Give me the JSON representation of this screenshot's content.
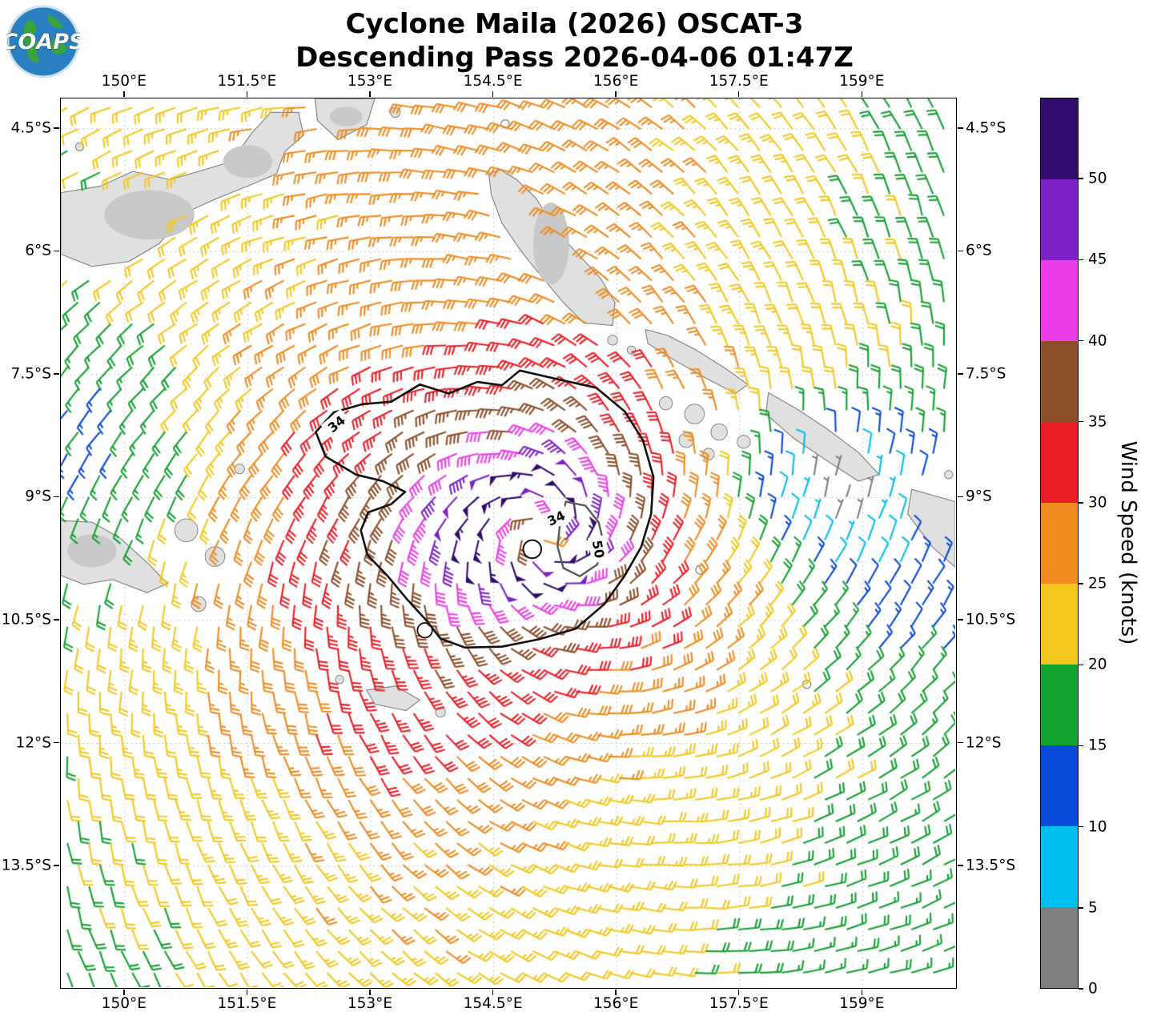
{
  "header": {
    "title_line1": "Cyclone Maila (2026) OSCAT-3",
    "title_line2": "Descending Pass 2026-04-06 01:47Z",
    "logo_text": "COAPS"
  },
  "map": {
    "lon_ticks": [
      {
        "value": 150.0,
        "label": "150°E"
      },
      {
        "value": 151.5,
        "label": "151.5°E"
      },
      {
        "value": 153.0,
        "label": "153°E"
      },
      {
        "value": 154.5,
        "label": "154.5°E"
      },
      {
        "value": 156.0,
        "label": "156°E"
      },
      {
        "value": 157.5,
        "label": "157.5°E"
      },
      {
        "value": 159.0,
        "label": "159°E"
      }
    ],
    "lat_ticks": [
      {
        "value": -4.5,
        "label": "4.5°S"
      },
      {
        "value": -6.0,
        "label": "6°S"
      },
      {
        "value": -7.5,
        "label": "7.5°S"
      },
      {
        "value": -9.0,
        "label": "9°S"
      },
      {
        "value": -10.5,
        "label": "10.5°S"
      },
      {
        "value": -12.0,
        "label": "12°S"
      },
      {
        "value": -13.5,
        "label": "13.5°S"
      }
    ]
  },
  "colorbar": {
    "label": "Wind Speed (knots)",
    "tick_values": [
      0,
      5,
      10,
      15,
      20,
      25,
      30,
      35,
      40,
      45,
      50
    ],
    "bounds": [
      0,
      5,
      10,
      15,
      20,
      25,
      30,
      35,
      40,
      45,
      50,
      55
    ],
    "colors": [
      "#7f7f7f",
      "#00bfef",
      "#0949d8",
      "#12a22f",
      "#f5c71e",
      "#f08b20",
      "#ea1d25",
      "#8d4e2a",
      "#ed3dea",
      "#7e22c8",
      "#330c6e"
    ]
  },
  "chart_data": {
    "type": "wind_barb_map",
    "units": "knots",
    "title": "Cyclone Maila (2026) OSCAT-3 Descending Pass 2026-04-06 01:47Z",
    "projection": {
      "lon_min": 149.22,
      "lon_max": 160.13,
      "lat_min": -14.975,
      "lat_max": -4.13
    },
    "grid": {
      "lon_start": 149.3,
      "lat_start": -4.24,
      "dlon": 0.264,
      "dlat": 0.264,
      "stagger": 0.132
    },
    "vortex": {
      "center_lon": 155.1,
      "center_lat": -9.45,
      "vmax_kt": 55,
      "rmax_deg": 0.5,
      "inner_exp": 0.35,
      "outer_exp": 0.45,
      "inflow_deg": 22,
      "west_stretch": 0.55,
      "north_stretch": 0.75,
      "zones": [
        {
          "lon": 154.5,
          "lat": -4.3,
          "amp": 7,
          "slon": 3.5,
          "slat": 1.2
        },
        {
          "lon": 153.5,
          "lat": -14.5,
          "amp": 5,
          "slon": 3.0,
          "slat": 1.5
        },
        {
          "lon": 149.8,
          "lat": -8.5,
          "amp": -10,
          "slon": 1.4,
          "slat": 1.8
        },
        {
          "lon": 158.6,
          "lat": -8.9,
          "amp": -20,
          "slon": 1.1,
          "slat": 0.9
        },
        {
          "lon": 159.3,
          "lat": -10.3,
          "amp": -8,
          "slon": 1.2,
          "slat": 1.0
        },
        {
          "lon": 153.3,
          "lat": -11.8,
          "amp": 6,
          "slon": 1.5,
          "slat": 1.2
        }
      ]
    },
    "contours": [
      {
        "level": 34,
        "color": "#111111",
        "width": 2.6,
        "points": [
          [
            154.82,
            -7.45
          ],
          [
            155.3,
            -7.56
          ],
          [
            155.75,
            -7.66
          ],
          [
            156.1,
            -7.95
          ],
          [
            156.32,
            -8.3
          ],
          [
            156.45,
            -8.75
          ],
          [
            156.42,
            -9.2
          ],
          [
            156.3,
            -9.6
          ],
          [
            156.1,
            -9.95
          ],
          [
            155.85,
            -10.3
          ],
          [
            155.5,
            -10.6
          ],
          [
            155.05,
            -10.73
          ],
          [
            154.6,
            -10.82
          ],
          [
            154.15,
            -10.83
          ],
          [
            153.85,
            -10.72
          ],
          [
            153.68,
            -10.5
          ],
          [
            153.45,
            -10.25
          ],
          [
            153.2,
            -9.95
          ],
          [
            152.96,
            -9.7
          ],
          [
            152.88,
            -9.4
          ],
          [
            152.97,
            -9.18
          ],
          [
            153.25,
            -9.08
          ],
          [
            153.42,
            -8.93
          ],
          [
            153.15,
            -8.8
          ],
          [
            152.82,
            -8.72
          ],
          [
            152.45,
            -8.5
          ],
          [
            152.33,
            -8.2
          ],
          [
            152.55,
            -7.96
          ],
          [
            152.9,
            -7.86
          ],
          [
            153.25,
            -7.83
          ],
          [
            153.6,
            -7.62
          ],
          [
            153.95,
            -7.73
          ],
          [
            154.3,
            -7.59
          ],
          [
            154.6,
            -7.63
          ]
        ]
      },
      {
        "level": 50,
        "color": "#5a5a5a",
        "width": 2.4,
        "points": [
          [
            155.38,
            -9.05
          ],
          [
            155.62,
            -9.1
          ],
          [
            155.78,
            -9.3
          ],
          [
            155.84,
            -9.55
          ],
          [
            155.76,
            -9.82
          ],
          [
            155.55,
            -9.96
          ],
          [
            155.35,
            -9.86
          ],
          [
            155.28,
            -9.6
          ],
          [
            155.31,
            -9.3
          ]
        ]
      },
      {
        "level": 34,
        "color": "#111111",
        "width": 2.0,
        "circle": [
          154.97,
          -9.63,
          0.11
        ]
      },
      {
        "level": 34,
        "color": "#111111",
        "width": 1.8,
        "circle": [
          153.66,
          -10.62,
          0.09
        ]
      }
    ],
    "contour_labels": [
      {
        "text": "34",
        "lon": 152.58,
        "lat": -8.1,
        "rot": -40
      },
      {
        "text": "34",
        "lon": 155.26,
        "lat": -9.25,
        "rot": -25
      },
      {
        "text": "50",
        "lon": 155.78,
        "lat": -9.63,
        "rot": 80
      }
    ],
    "land": {
      "polygons": [
        {
          "name": "new-britain",
          "points": [
            [
              149.22,
              -5.28
            ],
            [
              149.7,
              -5.2
            ],
            [
              150.1,
              -5.02
            ],
            [
              150.55,
              -5.12
            ],
            [
              150.9,
              -5.02
            ],
            [
              151.3,
              -4.9
            ],
            [
              151.55,
              -4.55
            ],
            [
              151.78,
              -4.3
            ],
            [
              152.12,
              -4.3
            ],
            [
              152.18,
              -4.58
            ],
            [
              151.95,
              -4.78
            ],
            [
              151.85,
              -5.05
            ],
            [
              151.5,
              -5.2
            ],
            [
              151.12,
              -5.35
            ],
            [
              150.75,
              -5.52
            ],
            [
              150.42,
              -5.9
            ],
            [
              150.05,
              -6.12
            ],
            [
              149.6,
              -6.18
            ],
            [
              149.22,
              -6.03
            ]
          ]
        },
        {
          "name": "new-ireland-tip",
          "points": [
            [
              152.32,
              -4.13
            ],
            [
              153.05,
              -4.13
            ],
            [
              152.95,
              -4.45
            ],
            [
              152.6,
              -4.63
            ],
            [
              152.35,
              -4.4
            ]
          ]
        },
        {
          "name": "bougainville",
          "points": [
            [
              154.58,
              -5.0
            ],
            [
              154.78,
              -5.12
            ],
            [
              155.02,
              -5.35
            ],
            [
              155.24,
              -5.72
            ],
            [
              155.52,
              -6.02
            ],
            [
              155.8,
              -6.32
            ],
            [
              155.98,
              -6.62
            ],
            [
              155.95,
              -6.9
            ],
            [
              155.6,
              -6.87
            ],
            [
              155.35,
              -6.62
            ],
            [
              155.08,
              -6.3
            ],
            [
              154.84,
              -6.0
            ],
            [
              154.6,
              -5.65
            ],
            [
              154.47,
              -5.3
            ],
            [
              154.44,
              -5.05
            ]
          ]
        },
        {
          "name": "choiseul",
          "points": [
            [
              156.35,
              -6.95
            ],
            [
              156.62,
              -7.02
            ],
            [
              156.97,
              -7.2
            ],
            [
              157.32,
              -7.42
            ],
            [
              157.6,
              -7.62
            ],
            [
              157.45,
              -7.73
            ],
            [
              157.1,
              -7.55
            ],
            [
              156.7,
              -7.32
            ],
            [
              156.38,
              -7.12
            ]
          ]
        },
        {
          "name": "santa-isabel",
          "points": [
            [
              157.85,
              -7.72
            ],
            [
              158.2,
              -7.92
            ],
            [
              158.55,
              -8.15
            ],
            [
              158.95,
              -8.45
            ],
            [
              159.2,
              -8.72
            ],
            [
              158.95,
              -8.8
            ],
            [
              158.55,
              -8.54
            ],
            [
              158.15,
              -8.27
            ],
            [
              157.82,
              -7.98
            ]
          ]
        },
        {
          "name": "malaita",
          "points": [
            [
              159.6,
              -8.9
            ],
            [
              160.13,
              -9.05
            ],
            [
              160.13,
              -9.85
            ],
            [
              159.85,
              -9.6
            ],
            [
              159.55,
              -9.2
            ]
          ]
        },
        {
          "name": "png-tip",
          "points": [
            [
              149.22,
              -9.28
            ],
            [
              149.6,
              -9.3
            ],
            [
              149.95,
              -9.5
            ],
            [
              150.3,
              -9.82
            ],
            [
              150.52,
              -10.05
            ],
            [
              150.27,
              -10.16
            ],
            [
              149.85,
              -10.0
            ],
            [
              149.5,
              -10.06
            ],
            [
              149.22,
              -9.95
            ]
          ]
        },
        {
          "name": "louisiade",
          "points": [
            [
              152.95,
              -11.35
            ],
            [
              153.3,
              -11.3
            ],
            [
              153.6,
              -11.47
            ],
            [
              153.43,
              -11.6
            ],
            [
              153.05,
              -11.52
            ]
          ]
        }
      ],
      "islands": [
        [
          149.45,
          -4.72,
          0.05
        ],
        [
          153.3,
          -4.3,
          0.06
        ],
        [
          155.95,
          -7.08,
          0.06
        ],
        [
          156.18,
          -7.2,
          0.05
        ],
        [
          156.6,
          -7.85,
          0.08
        ],
        [
          156.95,
          -7.98,
          0.12
        ],
        [
          157.25,
          -8.2,
          0.1
        ],
        [
          156.85,
          -8.3,
          0.09
        ],
        [
          157.55,
          -8.32,
          0.08
        ],
        [
          157.12,
          -8.47,
          0.07
        ],
        [
          160.05,
          -8.72,
          0.05
        ],
        [
          150.75,
          -9.4,
          0.14
        ],
        [
          151.1,
          -9.72,
          0.12
        ],
        [
          150.9,
          -10.3,
          0.09
        ],
        [
          151.4,
          -8.65,
          0.06
        ],
        [
          153.85,
          -11.62,
          0.06
        ],
        [
          152.62,
          -11.22,
          0.05
        ]
      ],
      "atolls": [
        [
          157.02,
          -9.88,
          0.055
        ],
        [
          158.32,
          -11.28,
          0.05
        ],
        [
          154.64,
          -4.44,
          0.05
        ]
      ],
      "shades": [
        [
          150.3,
          -5.55,
          0.55,
          0.3
        ],
        [
          151.5,
          -4.9,
          0.3,
          0.2
        ],
        [
          155.2,
          -5.9,
          0.22,
          0.5
        ],
        [
          149.6,
          -9.65,
          0.3,
          0.2
        ],
        [
          152.7,
          -4.35,
          0.2,
          0.12
        ]
      ]
    }
  }
}
